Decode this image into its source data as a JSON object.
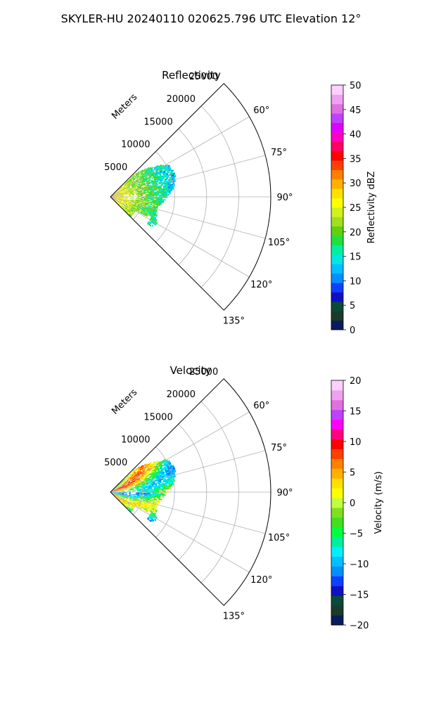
{
  "figure": {
    "title": "SKYLER-HU  20240110  020625.796 UTC Elevation 12°"
  },
  "colors": {
    "grid": "#b0b0b0",
    "frame": "#000000",
    "reflectivity_scale": [
      "#0a1a5c",
      "#1a3a2a",
      "#0a4a3a",
      "#1010c0",
      "#1040ff",
      "#0090ff",
      "#00c0ff",
      "#00e8e0",
      "#00f0a0",
      "#20e040",
      "#60d010",
      "#a0e020",
      "#d0f020",
      "#ffff00",
      "#ffe000",
      "#ffb000",
      "#ff8000",
      "#ff4000",
      "#ff0000",
      "#ff0060",
      "#ff00c0",
      "#e000ff",
      "#c040ff",
      "#e070e0",
      "#f0a0f0",
      "#ffd0ff"
    ],
    "velocity_scale": [
      "#0a1a5c",
      "#1a3a2a",
      "#0a4a3a",
      "#1010c0",
      "#1040ff",
      "#0090ff",
      "#00c0ff",
      "#00f0ff",
      "#00f0a0",
      "#00ff40",
      "#40e020",
      "#80e020",
      "#c0ff40",
      "#ffff00",
      "#ffe000",
      "#ffb000",
      "#ff8000",
      "#ff4000",
      "#ff0000",
      "#ff0080",
      "#ff00ff",
      "#c040ff",
      "#e070e0",
      "#f0a0f0",
      "#ffd0ff"
    ]
  },
  "chart_data": [
    {
      "type": "heatmap",
      "projection": "polar-sector",
      "title": "Reflectivity",
      "radial_label": "Meters",
      "radial_ticks": [
        5000,
        10000,
        15000,
        20000,
        25000
      ],
      "azimuth_ticks": [
        "60°",
        "75°",
        "90°",
        "105°",
        "120°",
        "135°"
      ],
      "azimuth_range_deg": [
        45,
        135
      ],
      "range_max_m": 25000,
      "colorbar": {
        "label": "Reflectivity dBZ",
        "range": [
          0,
          50
        ],
        "ticks": [
          "0",
          "5",
          "10",
          "15",
          "20",
          "25",
          "30",
          "35",
          "40",
          "45",
          "50"
        ]
      }
    },
    {
      "type": "heatmap",
      "projection": "polar-sector",
      "title": "Velocity",
      "radial_label": "Meters",
      "radial_ticks": [
        5000,
        10000,
        15000,
        20000,
        25000
      ],
      "azimuth_ticks": [
        "60°",
        "75°",
        "90°",
        "105°",
        "120°",
        "135°"
      ],
      "azimuth_range_deg": [
        45,
        135
      ],
      "range_max_m": 25000,
      "colorbar": {
        "label": "Velocity (m/s)",
        "range": [
          -20,
          20
        ],
        "ticks": [
          "−20",
          "−15",
          "−10",
          "−5",
          "0",
          "5",
          "10",
          "15",
          "20"
        ]
      }
    }
  ]
}
